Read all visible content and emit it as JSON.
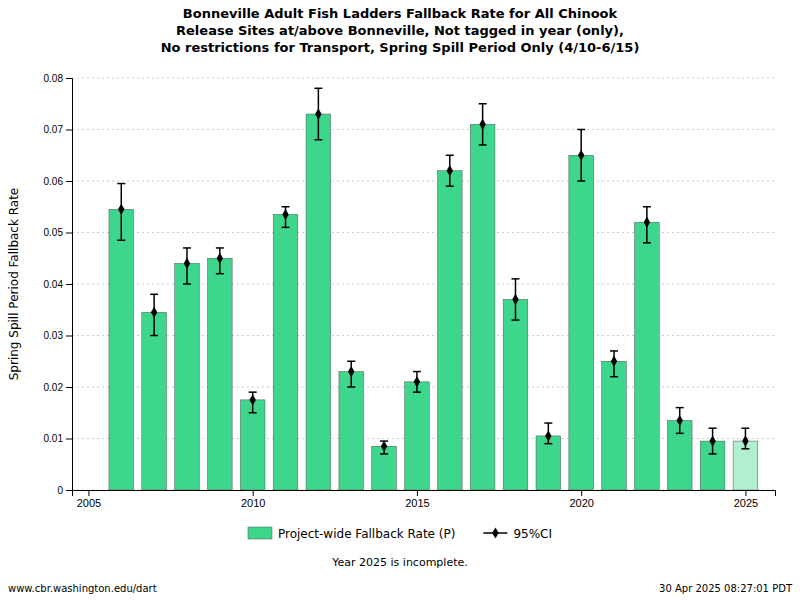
{
  "chart_data": {
    "type": "bar",
    "title": "Bonneville Adult Fish Ladders Fallback Rate for All Chinook\nRelease Sites at/above Bonneville, Not tagged in year (only),\nNo restrictions for Transport, Spring Spill Period Only (4/10-6/15)",
    "ylabel": "Spring Spill Period Fallback Rate",
    "x": [
      2006,
      2007,
      2008,
      2009,
      2010,
      2011,
      2012,
      2013,
      2014,
      2015,
      2016,
      2017,
      2018,
      2019,
      2020,
      2021,
      2022,
      2023,
      2024,
      2025
    ],
    "series": [
      {
        "name": "Project-wide Fallback Rate (P)",
        "color": "#3dd68c",
        "colors": [
          "#3dd68c",
          "#3dd68c",
          "#3dd68c",
          "#3dd68c",
          "#3dd68c",
          "#3dd68c",
          "#3dd68c",
          "#3dd68c",
          "#3dd68c",
          "#3dd68c",
          "#3dd68c",
          "#3dd68c",
          "#3dd68c",
          "#3dd68c",
          "#3dd68c",
          "#3dd68c",
          "#3dd68c",
          "#3dd68c",
          "#3dd68c",
          "#b0efd0"
        ],
        "values": [
          0.0545,
          0.0345,
          0.044,
          0.045,
          0.0175,
          0.0535,
          0.073,
          0.023,
          0.0085,
          0.021,
          0.062,
          0.071,
          0.037,
          0.0105,
          0.065,
          0.025,
          0.052,
          0.0135,
          0.0095,
          0.0095
        ],
        "ci_lower": [
          0.0485,
          0.03,
          0.04,
          0.042,
          0.015,
          0.051,
          0.068,
          0.02,
          0.007,
          0.019,
          0.059,
          0.067,
          0.033,
          0.009,
          0.06,
          0.022,
          0.048,
          0.011,
          0.007,
          0.008
        ],
        "ci_upper": [
          0.0595,
          0.038,
          0.047,
          0.047,
          0.019,
          0.055,
          0.078,
          0.025,
          0.0095,
          0.023,
          0.065,
          0.075,
          0.041,
          0.013,
          0.07,
          0.027,
          0.055,
          0.016,
          0.012,
          0.012
        ],
        "error_name": "95%CI"
      }
    ],
    "xlim": [
      2004.5,
      2025.9
    ],
    "xticks": [
      2005,
      2010,
      2015,
      2020,
      2025
    ],
    "ylim": [
      0,
      0.08
    ],
    "yticks": [
      0,
      0.01,
      0.02,
      0.03,
      0.04,
      0.05,
      0.06,
      0.07,
      0.08
    ],
    "grid": true,
    "legend": "bottom",
    "annotations": [
      "Year 2025 is incomplete.",
      "www.cbr.washington.edu/dart",
      "30 Apr 2025 08:27:01 PDT"
    ]
  }
}
